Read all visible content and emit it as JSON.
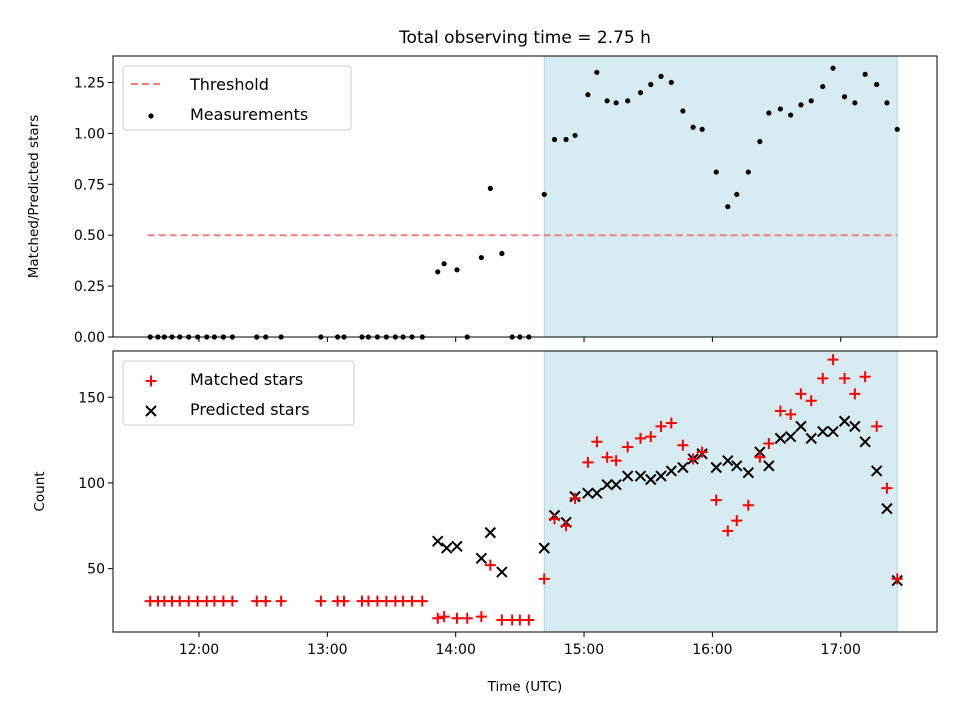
{
  "chart_data": [
    {
      "type": "scatter",
      "title": "Total observing time = 2.75 h",
      "ylabel": "Matched/Predicted stars",
      "xlim": [
        11.33,
        17.75
      ],
      "ylim": [
        0,
        1.38
      ],
      "yticks": [
        0.0,
        0.25,
        0.5,
        0.75,
        1.0,
        1.25
      ],
      "ytick_labels": [
        "0.00",
        "0.25",
        "0.50",
        "0.75",
        "1.00",
        "1.25"
      ],
      "shaded_x": [
        14.69,
        17.44
      ],
      "threshold": {
        "name": "Threshold",
        "x": [
          11.6,
          17.44
        ],
        "y": 0.5,
        "color": "#f08080"
      },
      "legend": {
        "placement": "upper-left",
        "entries": [
          "Threshold",
          "Measurements"
        ]
      },
      "series": [
        {
          "name": "Measurements",
          "color": "#000000",
          "marker": "dot",
          "x": [
            11.62,
            11.68,
            11.73,
            11.79,
            11.85,
            11.92,
            11.99,
            12.06,
            12.12,
            12.19,
            12.26,
            12.45,
            12.52,
            12.64,
            12.95,
            13.08,
            13.13,
            13.27,
            13.32,
            13.39,
            13.46,
            13.53,
            13.59,
            13.66,
            13.74,
            13.86,
            13.91,
            14.01,
            14.09,
            14.2,
            14.27,
            14.36,
            14.44,
            14.5,
            14.57,
            14.69,
            14.77,
            14.86,
            14.93,
            15.03,
            15.1,
            15.18,
            15.25,
            15.34,
            15.44,
            15.52,
            15.6,
            15.68,
            15.77,
            15.85,
            15.92,
            16.03,
            16.12,
            16.19,
            16.28,
            16.37,
            16.44,
            16.53,
            16.61,
            16.69,
            16.77,
            16.86,
            16.94,
            17.03,
            17.11,
            17.19,
            17.28,
            17.36,
            17.44
          ],
          "y": [
            0.0,
            0.0,
            0.0,
            0.0,
            0.0,
            0.0,
            0.0,
            0.0,
            0.0,
            0.0,
            0.0,
            0.0,
            0.0,
            0.0,
            0.0,
            0.0,
            0.0,
            0.0,
            0.0,
            0.0,
            0.0,
            0.0,
            0.0,
            0.0,
            0.0,
            0.32,
            0.36,
            0.33,
            0.0,
            0.39,
            0.73,
            0.41,
            0.0,
            0.0,
            0.0,
            0.7,
            0.97,
            0.97,
            0.99,
            1.19,
            1.3,
            1.16,
            1.15,
            1.16,
            1.2,
            1.24,
            1.28,
            1.25,
            1.11,
            1.03,
            1.02,
            0.81,
            0.64,
            0.7,
            0.81,
            0.96,
            1.1,
            1.12,
            1.09,
            1.14,
            1.16,
            1.23,
            1.32,
            1.18,
            1.15,
            1.29,
            1.24,
            1.15,
            1.02
          ]
        }
      ]
    },
    {
      "type": "scatter",
      "xlabel": "Time (UTC)",
      "ylabel": "Count",
      "xlim": [
        11.33,
        17.75
      ],
      "ylim": [
        13,
        177
      ],
      "xticks": [
        12,
        13,
        14,
        15,
        16,
        17
      ],
      "xtick_labels": [
        "12:00",
        "13:00",
        "14:00",
        "15:00",
        "16:00",
        "17:00"
      ],
      "yticks": [
        50,
        100,
        150
      ],
      "ytick_labels": [
        "50",
        "100",
        "150"
      ],
      "shaded_x": [
        14.69,
        17.44
      ],
      "legend": {
        "placement": "upper-left",
        "entries": [
          "Matched stars",
          "Predicted stars"
        ]
      },
      "series": [
        {
          "name": "Matched stars",
          "color": "#ff0000",
          "marker": "plus",
          "x": [
            11.62,
            11.68,
            11.73,
            11.79,
            11.85,
            11.92,
            11.99,
            12.06,
            12.12,
            12.19,
            12.26,
            12.45,
            12.52,
            12.64,
            12.95,
            13.08,
            13.13,
            13.27,
            13.32,
            13.39,
            13.46,
            13.53,
            13.59,
            13.66,
            13.74,
            13.86,
            13.91,
            14.01,
            14.09,
            14.2,
            14.27,
            14.36,
            14.44,
            14.5,
            14.57,
            14.69,
            14.77,
            14.86,
            14.93,
            15.03,
            15.1,
            15.18,
            15.25,
            15.34,
            15.44,
            15.52,
            15.6,
            15.68,
            15.77,
            15.85,
            15.92,
            16.03,
            16.12,
            16.19,
            16.28,
            16.37,
            16.44,
            16.53,
            16.61,
            16.69,
            16.77,
            16.86,
            16.94,
            17.03,
            17.11,
            17.19,
            17.28,
            17.36,
            17.44
          ],
          "y": [
            31,
            31,
            31,
            31,
            31,
            31,
            31,
            31,
            31,
            31,
            31,
            31,
            31,
            31,
            31,
            31,
            31,
            31,
            31,
            31,
            31,
            31,
            31,
            31,
            31,
            21,
            22,
            21,
            21,
            22,
            52,
            20,
            20,
            20,
            20,
            44,
            79,
            75,
            91,
            112,
            124,
            115,
            113,
            121,
            126,
            127,
            133,
            135,
            122,
            114,
            118,
            90,
            72,
            78,
            87,
            115,
            123,
            142,
            140,
            152,
            148,
            161,
            172,
            161,
            152,
            162,
            133,
            97,
            44
          ]
        },
        {
          "name": "Predicted stars",
          "color": "#000000",
          "marker": "x",
          "x": [
            13.86,
            13.93,
            14.01,
            14.2,
            14.27,
            14.36,
            14.69,
            14.77,
            14.86,
            14.93,
            15.03,
            15.1,
            15.18,
            15.25,
            15.34,
            15.44,
            15.52,
            15.6,
            15.68,
            15.77,
            15.85,
            15.92,
            16.03,
            16.12,
            16.19,
            16.28,
            16.37,
            16.44,
            16.53,
            16.61,
            16.69,
            16.77,
            16.86,
            16.94,
            17.03,
            17.11,
            17.19,
            17.28,
            17.36,
            17.44
          ],
          "y": [
            66,
            62,
            63,
            56,
            71,
            48,
            62,
            81,
            77,
            92,
            94,
            94,
            99,
            99,
            104,
            104,
            102,
            104,
            107,
            109,
            114,
            117,
            109,
            113,
            110,
            106,
            118,
            110,
            126,
            127,
            133,
            126,
            130,
            130,
            136,
            133,
            124,
            107,
            85,
            43
          ]
        }
      ]
    }
  ],
  "colors": {
    "shade": "#add8e6",
    "axes": "#000000"
  }
}
